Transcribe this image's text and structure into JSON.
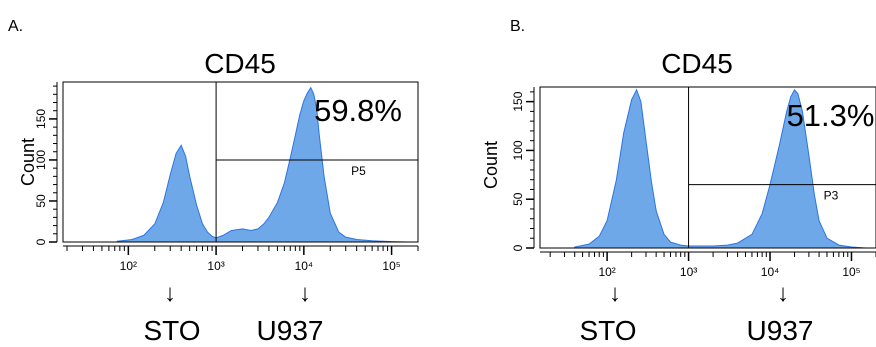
{
  "colors": {
    "fill": "#6FA8E8",
    "stroke": "#2C74E0",
    "ink": "#000000"
  },
  "arrow_glyph": "↓",
  "chart_data": [
    {
      "type": "area",
      "panel_label": "A.",
      "title": "CD45",
      "ylabel": "Count",
      "x_scale": "log",
      "xlim": [
        18,
        200000
      ],
      "ylim": [
        0,
        195
      ],
      "x_ticks": [
        {
          "value": 100,
          "label": "10²"
        },
        {
          "value": 1000,
          "label": "10³"
        },
        {
          "value": 10000,
          "label": "10⁴"
        },
        {
          "value": 100000,
          "label": "10⁵"
        }
      ],
      "y_ticks": [
        {
          "value": 0,
          "label": "0"
        },
        {
          "value": 50,
          "label": "50"
        },
        {
          "value": 100,
          "label": "100"
        },
        {
          "value": 150,
          "label": "150"
        }
      ],
      "gate": {
        "name": "P5",
        "x_min": 1000,
        "level": 100,
        "percent_label": "59.8%"
      },
      "populations": [
        {
          "name": "STO",
          "x": 350
        },
        {
          "name": "U937",
          "x": 12000
        }
      ],
      "series": [
        {
          "x": [
            75,
            110,
            150,
            200,
            250,
            300,
            350,
            400,
            450,
            500,
            600,
            700,
            800,
            900,
            1000,
            1200,
            1500,
            2000,
            2500,
            3000,
            3500,
            4000,
            5000,
            6000,
            7000,
            8000,
            9000,
            10000,
            11000,
            12000,
            13000,
            14000,
            15000,
            17000,
            20000,
            25000,
            30000,
            40000,
            60000,
            100000,
            150000
          ],
          "y": [
            1,
            3,
            8,
            22,
            48,
            82,
            108,
            118,
            104,
            80,
            45,
            22,
            12,
            7,
            5,
            8,
            14,
            16,
            14,
            16,
            22,
            30,
            48,
            72,
            102,
            130,
            155,
            172,
            182,
            188,
            180,
            162,
            130,
            80,
            35,
            12,
            6,
            3,
            1.5,
            0.5,
            0
          ]
        }
      ]
    },
    {
      "type": "area",
      "panel_label": "B.",
      "title": "CD45",
      "ylabel": "Count",
      "x_scale": "log",
      "xlim": [
        15,
        200000
      ],
      "ylim": [
        0,
        165
      ],
      "x_ticks": [
        {
          "value": 100,
          "label": "10²"
        },
        {
          "value": 1000,
          "label": "10³"
        },
        {
          "value": 10000,
          "label": "10⁴"
        },
        {
          "value": 100000,
          "label": "10⁵"
        }
      ],
      "y_ticks": [
        {
          "value": 0,
          "label": "0"
        },
        {
          "value": 50,
          "label": "50"
        },
        {
          "value": 100,
          "label": "100"
        },
        {
          "value": 150,
          "label": "150"
        }
      ],
      "gate": {
        "name": "P3",
        "x_min": 1000,
        "level": 65,
        "percent_label": "51.3%"
      },
      "populations": [
        {
          "name": "STO",
          "x": 250
        },
        {
          "name": "U937",
          "x": 20000
        }
      ],
      "series": [
        {
          "x": [
            40,
            60,
            80,
            100,
            130,
            160,
            200,
            230,
            260,
            300,
            350,
            400,
            500,
            600,
            800,
            1000,
            1500,
            2000,
            3000,
            4000,
            6000,
            8000,
            10000,
            13000,
            16000,
            18000,
            20000,
            22000,
            25000,
            30000,
            35000,
            40000,
            50000,
            70000,
            100000,
            150000
          ],
          "y": [
            1,
            4,
            12,
            28,
            70,
            118,
            152,
            162,
            150,
            110,
            68,
            38,
            14,
            6,
            3,
            2,
            2,
            2,
            3,
            5,
            14,
            35,
            65,
            105,
            140,
            155,
            162,
            158,
            140,
            95,
            55,
            28,
            10,
            3,
            1,
            0
          ]
        }
      ]
    }
  ]
}
